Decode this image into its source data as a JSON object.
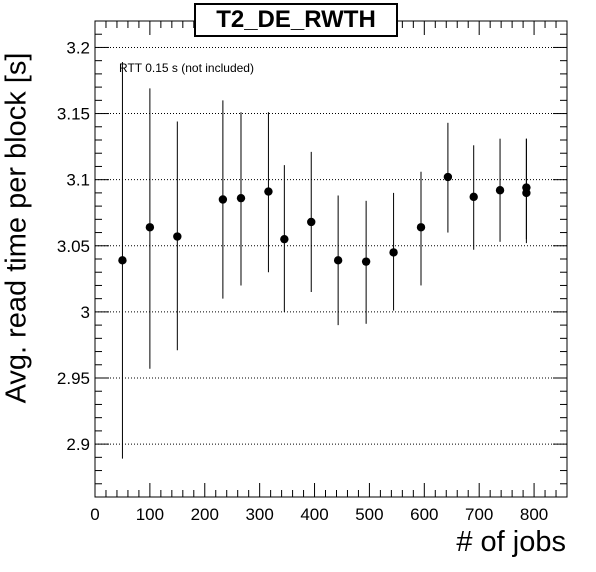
{
  "chart_data": {
    "type": "scatter",
    "title": "T2_DE_RWTH",
    "xlabel": "# of jobs",
    "ylabel": "Avg. read time per block [s]",
    "annotation": "RTT 0.15 s (not included)",
    "xlim": [
      0,
      860
    ],
    "ylim": [
      2.86,
      3.22
    ],
    "x_ticks": [
      0,
      100,
      200,
      300,
      400,
      500,
      600,
      700,
      800
    ],
    "x_tick_labels": [
      "0",
      "100",
      "200",
      "300",
      "400",
      "500",
      "600",
      "700",
      "800"
    ],
    "y_ticks": [
      2.9,
      2.95,
      3.0,
      3.05,
      3.1,
      3.15,
      3.2
    ],
    "y_tick_labels": [
      "2.9",
      "2.95",
      "3",
      "3.05",
      "3.1",
      "3.15",
      "3.2"
    ],
    "grid": "horizontal-dotted",
    "points": [
      {
        "x": 50,
        "y": 3.039,
        "err_low": 2.889,
        "err_high": 3.189
      },
      {
        "x": 100,
        "y": 3.064,
        "err_low": 2.957,
        "err_high": 3.169
      },
      {
        "x": 150,
        "y": 3.057,
        "err_low": 2.971,
        "err_high": 3.144
      },
      {
        "x": 233,
        "y": 3.085,
        "err_low": 3.01,
        "err_high": 3.16
      },
      {
        "x": 266,
        "y": 3.086,
        "err_low": 3.02,
        "err_high": 3.151
      },
      {
        "x": 316,
        "y": 3.091,
        "err_low": 3.03,
        "err_high": 3.151
      },
      {
        "x": 345,
        "y": 3.055,
        "err_low": 3.0,
        "err_high": 3.111
      },
      {
        "x": 394,
        "y": 3.068,
        "err_low": 3.015,
        "err_high": 3.121
      },
      {
        "x": 443,
        "y": 3.039,
        "err_low": 2.99,
        "err_high": 3.088
      },
      {
        "x": 494,
        "y": 3.038,
        "err_low": 2.991,
        "err_high": 3.084
      },
      {
        "x": 544,
        "y": 3.045,
        "err_low": 3.001,
        "err_high": 3.09
      },
      {
        "x": 594,
        "y": 3.064,
        "err_low": 3.02,
        "err_high": 3.106
      },
      {
        "x": 643,
        "y": 3.102,
        "err_low": 3.06,
        "err_high": 3.143
      },
      {
        "x": 690,
        "y": 3.087,
        "err_low": 3.047,
        "err_high": 3.126
      },
      {
        "x": 738,
        "y": 3.092,
        "err_low": 3.053,
        "err_high": 3.131
      },
      {
        "x": 786,
        "y": 3.09,
        "err_low": 3.052,
        "err_high": 3.131
      },
      {
        "x": 786,
        "y": 3.094,
        "err_low": 3.055,
        "err_high": 3.131
      }
    ]
  }
}
